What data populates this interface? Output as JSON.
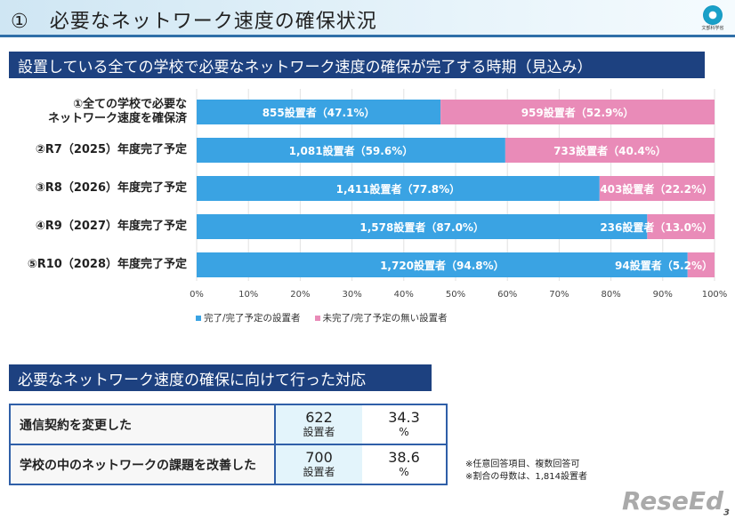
{
  "header": {
    "title": "①　必要なネットワーク速度の確保状況",
    "logo_text": "文部科学省"
  },
  "section1": {
    "title": "設置している全ての学校で必要なネットワーク速度の確保が完了する時期（見込み）"
  },
  "chart_data": {
    "type": "bar",
    "orientation": "horizontal",
    "stacked": true,
    "categories": [
      "①全ての学校で必要な\nネットワーク速度を確保済",
      "②R7（2025）年度完了予定",
      "③R8（2026）年度完了予定",
      "④R9（2027）年度完了予定",
      "⑤R10（2028）年度完了予定"
    ],
    "series": [
      {
        "name": "完了/完了予定の設置者",
        "color": "#3aa3e3",
        "values": [
          47.1,
          59.6,
          77.8,
          87.0,
          94.8
        ],
        "labels": [
          "855設置者（47.1%）",
          "1,081設置者（59.6%）",
          "1,411設置者（77.8%）",
          "1,578設置者（87.0%）",
          "1,720設置者（94.8%）"
        ]
      },
      {
        "name": "未完了/完了予定の無い設置者",
        "color": "#e98bb8",
        "values": [
          52.9,
          40.4,
          22.2,
          13.0,
          5.2
        ],
        "labels": [
          "959設置者（52.9%）",
          "733設置者（40.4%）",
          "403設置者（22.2%）",
          "236設置者（13.0%）",
          "94設置者（5.2%）"
        ]
      }
    ],
    "xlim": [
      0,
      100
    ],
    "xticks": [
      "0%",
      "10%",
      "20%",
      "30%",
      "40%",
      "50%",
      "60%",
      "70%",
      "80%",
      "90%",
      "100%"
    ],
    "grid": true,
    "legend": "bottom"
  },
  "section2": {
    "title": "必要なネットワーク速度の確保に向けて行った対応",
    "rows": [
      {
        "label": "通信契約を変更した",
        "count": "622",
        "unit": "設置者",
        "pct": "34.3",
        "pct_unit": "%"
      },
      {
        "label": "学校の中のネットワークの課題を改善した",
        "count": "700",
        "unit": "設置者",
        "pct": "38.6",
        "pct_unit": "%"
      }
    ],
    "notes": [
      "※任意回答項目、複数回答可",
      "※割合の母数は、1,814設置者"
    ]
  },
  "footer": {
    "watermark": "ReseEd",
    "page": "3"
  }
}
